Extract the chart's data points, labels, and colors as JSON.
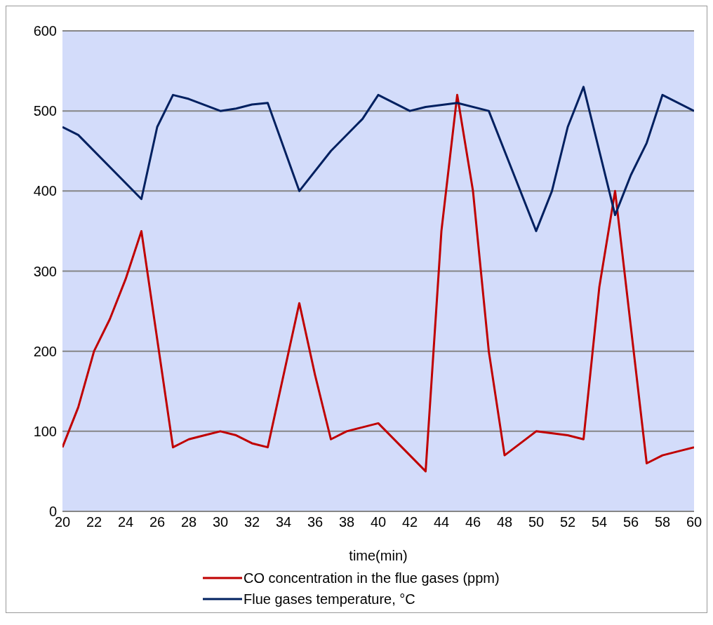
{
  "chart_data": {
    "type": "line",
    "xlabel": "time(min)",
    "xlim": [
      20,
      60
    ],
    "xticks": [
      20,
      22,
      24,
      26,
      28,
      30,
      32,
      34,
      36,
      38,
      40,
      42,
      44,
      46,
      48,
      50,
      52,
      54,
      56,
      58,
      60
    ],
    "ylim": [
      0,
      600
    ],
    "yticks": [
      0,
      100,
      200,
      300,
      400,
      500,
      600
    ],
    "grid": "y",
    "legend": "bottom",
    "marker": "none",
    "line_style": "solid",
    "series": [
      {
        "name": "CO concentration in the flue gases (ppm)",
        "color": "#c00000",
        "x": [
          20,
          21,
          22,
          23,
          24,
          25,
          27,
          28,
          29,
          30,
          31,
          32,
          33,
          35,
          36,
          37,
          38,
          39,
          40,
          43,
          44,
          45,
          46,
          47,
          48,
          50,
          52,
          53,
          54,
          55,
          57,
          58,
          59,
          60
        ],
        "values": [
          80,
          130,
          200,
          240,
          290,
          350,
          80,
          90,
          95,
          100,
          95,
          85,
          80,
          260,
          170,
          90,
          100,
          105,
          110,
          50,
          350,
          520,
          400,
          200,
          70,
          100,
          95,
          90,
          280,
          400,
          60,
          70,
          75,
          80
        ]
      },
      {
        "name": "Flue gases temperature, °C",
        "color": "#002060",
        "x": [
          20,
          21,
          25,
          26,
          27,
          28,
          30,
          31,
          32,
          33,
          35,
          37,
          39,
          40,
          42,
          43,
          45,
          47,
          50,
          51,
          52,
          53,
          55,
          56,
          57,
          58,
          60
        ],
        "values": [
          480,
          470,
          390,
          480,
          520,
          515,
          500,
          503,
          508,
          510,
          400,
          450,
          490,
          520,
          500,
          505,
          510,
          500,
          350,
          400,
          480,
          530,
          370,
          420,
          460,
          520,
          500
        ]
      }
    ]
  }
}
